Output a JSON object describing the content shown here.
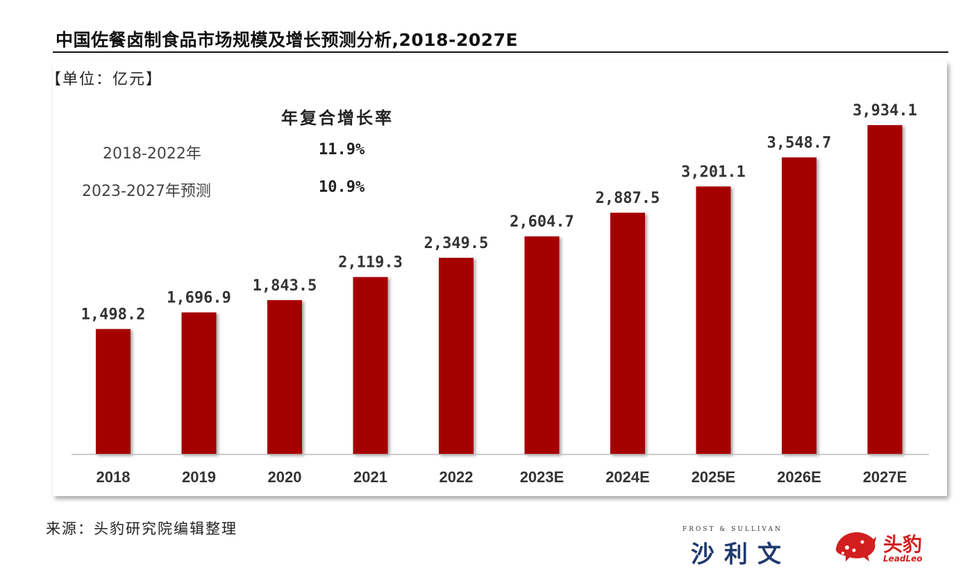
{
  "header": {
    "title": "中国佐餐卤制食品市场规模及增长预测分析,2018-2027E",
    "unit": "【单位：亿元】"
  },
  "cagr": {
    "heading": "年复合增长率",
    "rows": [
      {
        "period": "2018-2022年",
        "value": "11.9%"
      },
      {
        "period": "2023-2027年预测",
        "value": "10.9%"
      }
    ]
  },
  "chart_data": {
    "type": "bar",
    "title": "中国佐餐卤制食品市场规模及增长预测分析,2018-2027E",
    "ylabel": "亿元",
    "xlabel": "",
    "categories": [
      "2018",
      "2019",
      "2020",
      "2021",
      "2022",
      "2023E",
      "2024E",
      "2025E",
      "2026E",
      "2027E"
    ],
    "values": [
      1498.2,
      1696.9,
      1843.5,
      2119.3,
      2349.5,
      2604.7,
      2887.5,
      3201.1,
      3548.7,
      3934.1
    ],
    "value_labels": [
      "1,498.2",
      "1,696.9",
      "1,843.5",
      "2,119.3",
      "2,349.5",
      "2,604.7",
      "2,887.5",
      "3,201.1",
      "3,548.7",
      "3,934.1"
    ],
    "ylim": [
      0,
      4300
    ],
    "grid": false,
    "bar_color": "#a50000"
  },
  "footer": {
    "source": "来源：头豹研究院编辑整理",
    "logo_fs_small": "FROST & SULLIVAN",
    "logo_fs_big": "沙利文",
    "logo_leo": "头豹",
    "logo_leo_sub": "LeadLeo"
  }
}
